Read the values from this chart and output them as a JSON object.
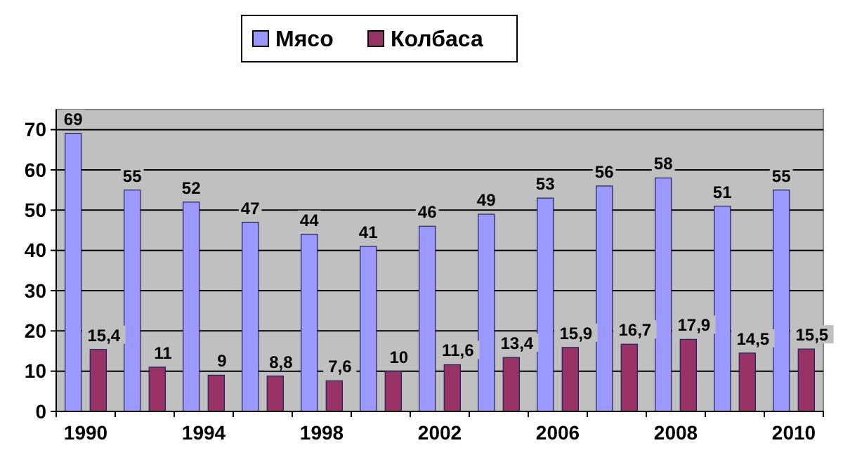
{
  "chart_data": {
    "type": "bar",
    "categories": [
      "1990",
      null,
      "1994",
      null,
      "1998",
      null,
      "2002",
      null,
      "2006",
      null,
      "2008",
      null,
      "2010"
    ],
    "series": [
      {
        "name": "Мясо",
        "color": "#9999ff",
        "values": [
          69,
          55,
          52,
          47,
          44,
          41,
          46,
          49,
          53,
          56,
          58,
          51,
          55
        ],
        "value_labels": [
          "69",
          "55",
          "52",
          "47",
          "44",
          "41",
          "46",
          "49",
          "53",
          "56",
          "58",
          "51",
          "55"
        ]
      },
      {
        "name": "Колбаса",
        "color": "#993366",
        "values": [
          15.4,
          11,
          9,
          8.8,
          7.6,
          10,
          11.6,
          13.4,
          15.9,
          16.7,
          17.9,
          14.5,
          15.5
        ],
        "value_labels": [
          "15,4",
          "11",
          "9",
          "8,8",
          "7,6",
          "10",
          "11,6",
          "13,4",
          "15,9",
          "16,7",
          "17,9",
          "14,5",
          "15,5"
        ]
      }
    ],
    "ylim": [
      0,
      75
    ],
    "yticks": [
      0,
      10,
      20,
      30,
      40,
      50,
      60,
      70
    ],
    "grid": "y",
    "legend": "top"
  }
}
